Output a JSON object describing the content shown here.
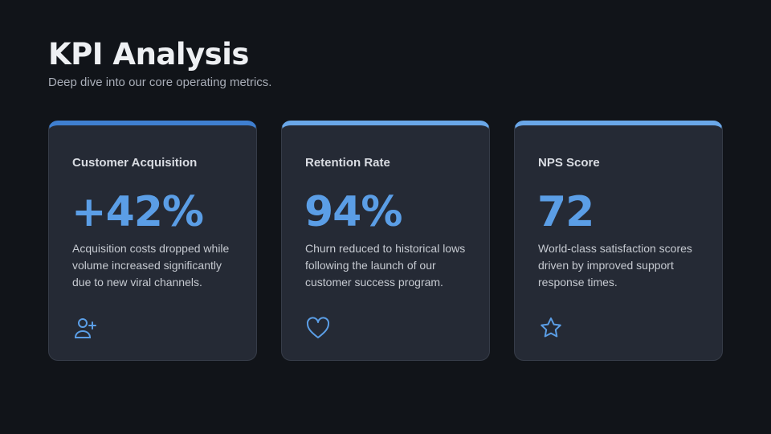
{
  "header": {
    "title": "KPI Analysis",
    "subtitle": "Deep dive into our core operating metrics."
  },
  "cards": [
    {
      "title": "Customer Acquisition",
      "value": "+42%",
      "description": "Acquisition costs dropped while volume increased significantly due to new viral channels."
    },
    {
      "title": "Retention Rate",
      "value": "94%",
      "description": "Churn reduced to historical lows following the launch of our customer success program."
    },
    {
      "title": "NPS Score",
      "value": "72",
      "description": "World-class satisfaction scores driven by improved support response times."
    }
  ]
}
